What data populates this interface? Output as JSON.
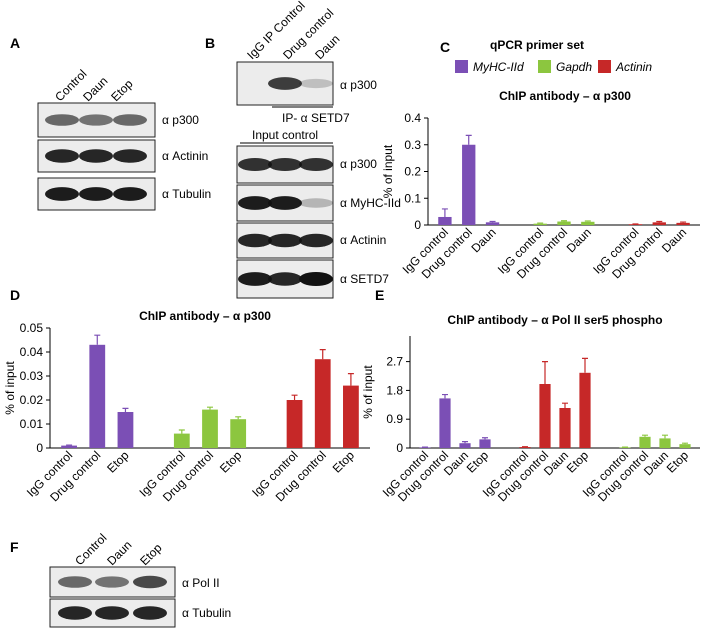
{
  "panel_labels": [
    "A",
    "B",
    "C",
    "D",
    "E",
    "F"
  ],
  "blots": {
    "A": {
      "lanes": [
        "Control",
        "Daun",
        "Etop"
      ],
      "rows": [
        "α p300",
        "α Actinin",
        "α Tubulin"
      ]
    },
    "B": {
      "lanes": [
        "IgG IP Control",
        "Drug control",
        "Daun"
      ],
      "ip_row": "α p300",
      "ip_label": "IP- α SETD7",
      "input_label": "Input control",
      "rows": [
        "α p300",
        "α MyHC-IId",
        "α Actinin",
        "α SETD7"
      ]
    },
    "F": {
      "lanes": [
        "Control",
        "Daun",
        "Etop"
      ],
      "rows": [
        "α Pol II",
        "α Tubulin"
      ]
    }
  },
  "chart_data": [
    {
      "type": "bar",
      "title": "ChIP antibody – α p300",
      "y_label": "% of input",
      "legend_title": "qPCR primer set",
      "categories": [
        "IgG control",
        "Drug control",
        "Daun"
      ],
      "series": [
        {
          "name": "MyHC-IId",
          "color": "#7b4fb5",
          "values": [
            0.03,
            0.3,
            0.01
          ],
          "errors": [
            0.03,
            0.035,
            0.003
          ]
        },
        {
          "name": "Gapdh",
          "color": "#8cc63f",
          "values": [
            0.005,
            0.013,
            0.012
          ],
          "errors": [
            0.002,
            0.003,
            0.003
          ]
        },
        {
          "name": "Actinin",
          "color": "#c62828",
          "values": [
            0.003,
            0.01,
            0.008
          ],
          "errors": [
            0.001,
            0.003,
            0.003
          ]
        }
      ],
      "ylim": [
        0,
        0.4
      ],
      "yticks": [
        0,
        0.1,
        0.2,
        0.3,
        0.4
      ]
    },
    {
      "type": "bar",
      "title": "ChIP antibody – α p300",
      "y_label": "% of input",
      "categories": [
        "IgG control",
        "Drug control",
        "Etop"
      ],
      "series": [
        {
          "color": "#7b4fb5",
          "values": [
            0.001,
            0.043,
            0.015
          ],
          "errors": [
            0.0002,
            0.004,
            0.0015
          ]
        },
        {
          "color": "#8cc63f",
          "values": [
            0.006,
            0.016,
            0.012
          ],
          "errors": [
            0.0015,
            0.001,
            0.001
          ]
        },
        {
          "color": "#c62828",
          "values": [
            0.02,
            0.037,
            0.026
          ],
          "errors": [
            0.002,
            0.004,
            0.005
          ]
        }
      ],
      "ylim": [
        0,
        0.05
      ],
      "yticks": [
        0,
        0.01,
        0.02,
        0.03,
        0.04,
        0.05
      ]
    },
    {
      "type": "bar",
      "title": "ChIP antibody – α Pol II ser5 phospho",
      "y_label": "% of input",
      "categories": [
        "IgG control",
        "Drug control",
        "Daun",
        "Etop"
      ],
      "series": [
        {
          "color": "#7b4fb5",
          "values": [
            0.02,
            1.55,
            0.15,
            0.27
          ],
          "errors": [
            0.01,
            0.12,
            0.05,
            0.05
          ]
        },
        {
          "color": "#c62828",
          "values": [
            0.03,
            2.0,
            1.25,
            2.35
          ],
          "errors": [
            0.01,
            0.7,
            0.15,
            0.45
          ]
        },
        {
          "color": "#8cc63f",
          "values": [
            0.02,
            0.35,
            0.3,
            0.12
          ],
          "errors": [
            0.01,
            0.05,
            0.1,
            0.03
          ]
        }
      ],
      "ylim": [
        0,
        3.5
      ],
      "yticks": [
        0,
        0.9,
        1.8,
        2.7
      ]
    }
  ]
}
